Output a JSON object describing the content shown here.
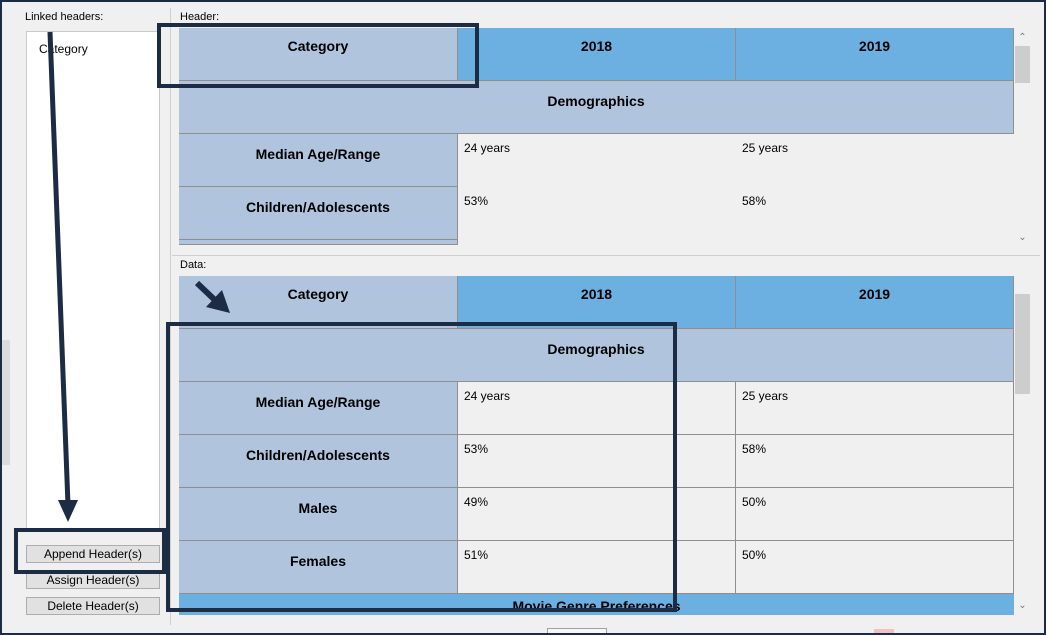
{
  "left_panel": {
    "linked_headers_label": "Linked headers:",
    "items": [
      "Category"
    ],
    "buttons": {
      "append": "Append Header(s)",
      "assign": "Assign Header(s)",
      "delete": "Delete Header(s)"
    }
  },
  "header_grid": {
    "label": "Header:",
    "columns": [
      "Category",
      "2018",
      "2019"
    ],
    "section": "Demographics",
    "rows": [
      {
        "category": "Median Age/Range",
        "y2018": "24 years",
        "y2019": "25 years"
      },
      {
        "category": "Children/Adolescents",
        "y2018": "53%",
        "y2019": "58%"
      }
    ]
  },
  "data_grid": {
    "label": "Data:",
    "columns": [
      "Category",
      "2018",
      "2019"
    ],
    "section": "Demographics",
    "rows": [
      {
        "category": "Median Age/Range",
        "y2018": "24 years",
        "y2019": "25 years"
      },
      {
        "category": "Children/Adolescents",
        "y2018": "53%",
        "y2019": "58%"
      },
      {
        "category": "Males",
        "y2018": "49%",
        "y2019": "50%"
      },
      {
        "category": "Females",
        "y2018": "51%",
        "y2019": "50%"
      }
    ],
    "next_section": "Movie Genre Preferences"
  },
  "colors": {
    "header_gray": "#b0c4de",
    "header_blue": "#6cb0e2",
    "annotation": "#1b2c44"
  },
  "icons": {
    "scroll_up": "chevron-up-icon",
    "scroll_down": "chevron-down-icon",
    "annotation_arrow": "arrow-icon"
  }
}
